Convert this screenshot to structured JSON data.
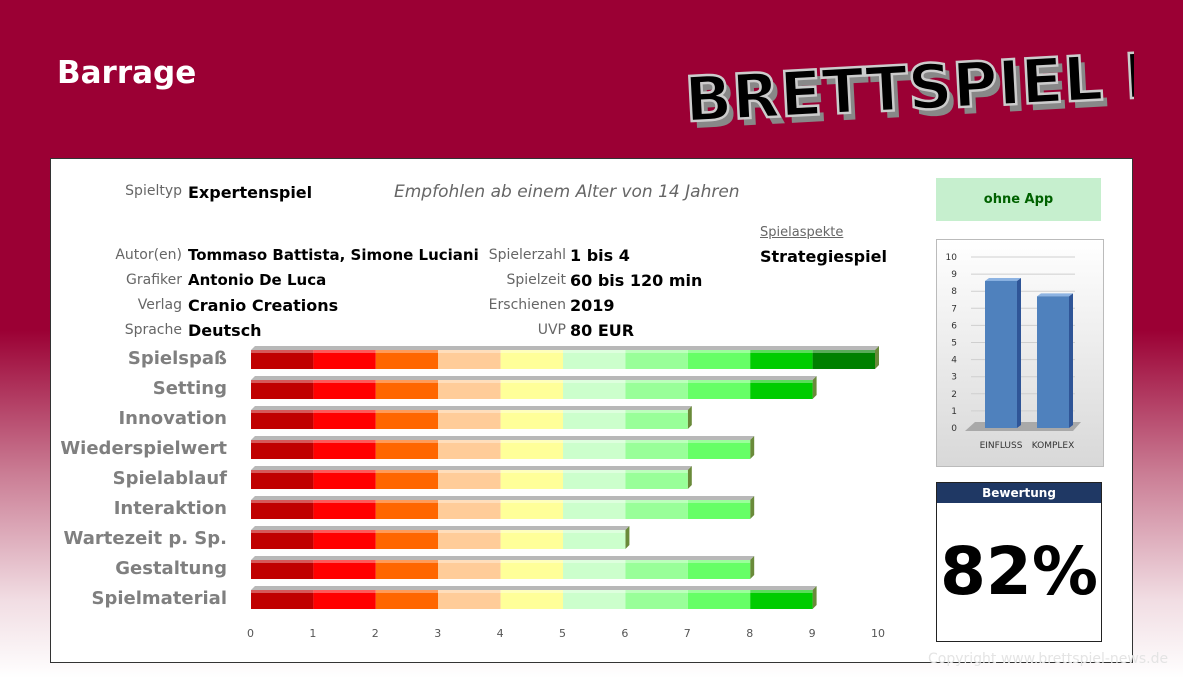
{
  "title": "Barrage",
  "logo": "BRETTSPIEL NEWS",
  "info": {
    "spieltyp_label": "Spieltyp",
    "spieltyp": "Expertenspiel",
    "empfohlen": "Empfohlen ab einem Alter von 14 Jahren",
    "autor_label": "Autor(en)",
    "autor": "Tommaso Battista, Simone Luciani",
    "grafiker_label": "Grafiker",
    "grafiker": "Antonio De Luca",
    "verlag_label": "Verlag",
    "verlag": "Cranio Creations",
    "sprache_label": "Sprache",
    "sprache": "Deutsch",
    "spielerzahl_label": "Spielerzahl",
    "spielerzahl": "1 bis 4",
    "spielzeit_label": "Spielzeit",
    "spielzeit": "60 bis 120 min",
    "erschienen_label": "Erschienen",
    "erschienen": "2019",
    "uvp_label": "UVP",
    "uvp": "80 EUR",
    "aspekte_label": "Spielaspekte",
    "aspekte": "Strategiespiel"
  },
  "app_label": "ohne App",
  "rating": {
    "label": "Bewertung",
    "value": "82%"
  },
  "copyright": "Copyright www.brettspiel-news.de",
  "chart_data": [
    {
      "type": "bar",
      "orientation": "horizontal",
      "categories": [
        "Spielspaß",
        "Setting",
        "Innovation",
        "Wiederspielwert",
        "Spielablauf",
        "Interaktion",
        "Wartezeit p. Sp.",
        "Gestaltung",
        "Spielmaterial"
      ],
      "values": [
        10,
        9,
        7,
        8,
        7,
        8,
        6,
        8,
        9
      ],
      "xlim": [
        0,
        10
      ],
      "xticks": [
        "0",
        "1",
        "2",
        "3",
        "4",
        "5",
        "6",
        "7",
        "8",
        "9",
        "10"
      ],
      "segment_colors": [
        "#c00000",
        "#ff0000",
        "#ff6600",
        "#ffcc99",
        "#ffff99",
        "#ccffcc",
        "#99ff99",
        "#66ff66",
        "#00cc00",
        "#008000"
      ]
    },
    {
      "type": "bar",
      "categories": [
        "EINFLUSS",
        "KOMPLEX"
      ],
      "values": [
        8.6,
        7.7
      ],
      "ylim": [
        0,
        10
      ],
      "yticks": [
        "0",
        "1",
        "2",
        "3",
        "4",
        "5",
        "6",
        "7",
        "8",
        "9",
        "10"
      ],
      "color": "#4f81bd"
    }
  ]
}
